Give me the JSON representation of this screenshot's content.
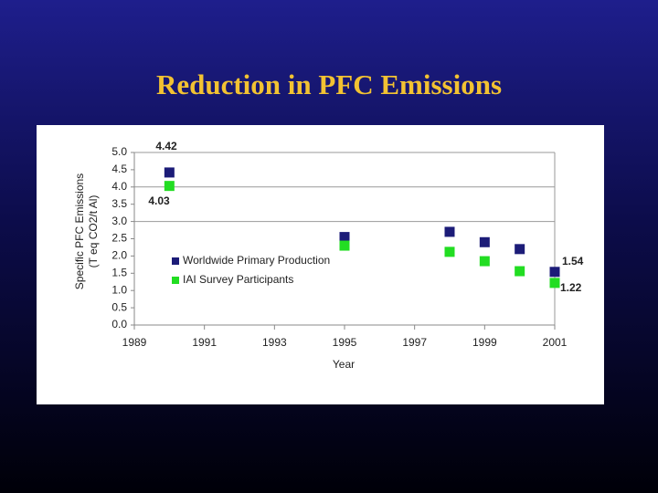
{
  "chart_data": {
    "type": "scatter",
    "title": "Reduction in PFC Emissions",
    "x_label": "Year",
    "y_label": [
      "Specific PFC Emissions",
      "(T eq CO2/t Al)"
    ],
    "xlim": [
      1989,
      2001
    ],
    "xticks": [
      1989,
      1991,
      1993,
      1995,
      1997,
      1999,
      2001
    ],
    "ylim": [
      0,
      5
    ],
    "yticks": [
      {
        "value": 0,
        "label": "0.0"
      },
      0.5,
      {
        "value": 1,
        "label": "1.0"
      },
      1.5,
      {
        "value": 2,
        "label": "2.0"
      },
      2.5,
      {
        "value": 3,
        "label": "3.0"
      },
      3.5,
      {
        "value": 4,
        "label": "4.0"
      },
      4.5,
      {
        "value": 5,
        "label": "5.0"
      }
    ],
    "gridlines": [
      3,
      4,
      5
    ],
    "series": [
      {
        "name": "Worldwide Primary Production",
        "color": "#1c1c78",
        "x": [
          1990,
          1995,
          1998,
          1999,
          2000,
          2001
        ],
        "values": [
          4.42,
          2.55,
          2.7,
          2.4,
          2.2,
          1.54
        ],
        "value_labels": [
          "4.42",
          null,
          null,
          null,
          null,
          "1.54"
        ]
      },
      {
        "name": "IAI Survey Participants",
        "color": "#22dd22",
        "x": [
          1990,
          1995,
          1998,
          1999,
          2000,
          2001
        ],
        "values": [
          4.03,
          2.3,
          2.12,
          1.85,
          1.56,
          1.22
        ],
        "value_labels": [
          "4.03",
          null,
          null,
          null,
          null,
          "1.22"
        ]
      }
    ]
  }
}
